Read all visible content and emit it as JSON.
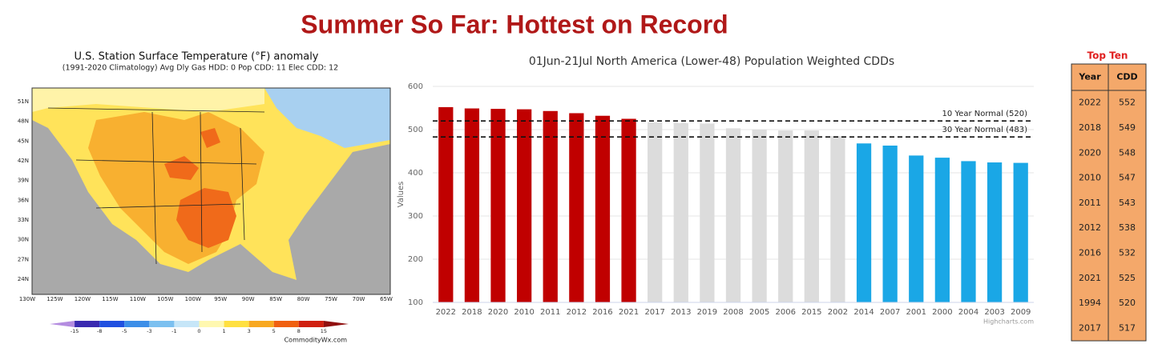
{
  "title": "Summer So Far: Hottest on Record",
  "map": {
    "title": "U.S. Station Surface Temperature (°F) anomaly",
    "subtitle": "(1991-2020 Climatology) Avg Dly Gas HDD: 0 Pop CDD: 11 Elec CDD: 12",
    "lat_labels": [
      "51N",
      "48N",
      "45N",
      "42N",
      "39N",
      "36N",
      "33N",
      "30N",
      "27N",
      "24N"
    ],
    "lon_labels": [
      "130W",
      "125W",
      "120W",
      "115W",
      "110W",
      "105W",
      "100W",
      "95W",
      "90W",
      "85W",
      "80W",
      "75W",
      "70W",
      "65W"
    ],
    "colorbar": {
      "ticks": [
        -15,
        -8,
        -5,
        -3,
        -1,
        0,
        1,
        3,
        5,
        8,
        15
      ],
      "colors": [
        "#b48ce0",
        "#3a2ab0",
        "#2050e0",
        "#3c8ee8",
        "#7cc0f0",
        "#c6e6f8",
        "#fff8b0",
        "#ffe040",
        "#f8a820",
        "#f06010",
        "#d02010",
        "#901010"
      ]
    },
    "credit": "CommodityWx.com"
  },
  "chart_data": {
    "type": "bar",
    "title": "01Jun-21Jul North America (Lower-48) Population Weighted CDDs",
    "y_label": "Values",
    "categories": [
      "2022",
      "2018",
      "2020",
      "2010",
      "2011",
      "2012",
      "2016",
      "2021",
      "2017",
      "2013",
      "2019",
      "2008",
      "2005",
      "2006",
      "2015",
      "2002",
      "2014",
      "2007",
      "2001",
      "2000",
      "2004",
      "2003",
      "2009"
    ],
    "values": [
      552,
      549,
      548,
      547,
      543,
      538,
      532,
      525,
      517,
      515,
      514,
      503,
      500,
      498,
      498,
      485,
      468,
      463,
      440,
      435,
      427,
      424,
      423
    ],
    "colors": [
      "#c00000",
      "#c00000",
      "#c00000",
      "#c00000",
      "#c00000",
      "#c00000",
      "#c00000",
      "#c00000",
      "#dcdcdc",
      "#dcdcdc",
      "#dcdcdc",
      "#dcdcdc",
      "#dcdcdc",
      "#dcdcdc",
      "#dcdcdc",
      "#dcdcdc",
      "#1aa7e6",
      "#1aa7e6",
      "#1aa7e6",
      "#1aa7e6",
      "#1aa7e6",
      "#1aa7e6",
      "#1aa7e6"
    ],
    "ylim": [
      100,
      600
    ],
    "yticks": [
      100,
      200,
      300,
      400,
      500,
      600
    ],
    "grid": true,
    "reference_lines": [
      {
        "value": 520,
        "label": "10 Year Normal (520)"
      },
      {
        "value": 483,
        "label": "30 Year Normal (483)"
      }
    ],
    "credit": "Highcharts.com"
  },
  "table": {
    "title": "Top Ten",
    "columns": [
      "Year",
      "CDD"
    ],
    "rows": [
      [
        2022,
        552
      ],
      [
        2018,
        549
      ],
      [
        2020,
        548
      ],
      [
        2010,
        547
      ],
      [
        2011,
        543
      ],
      [
        2012,
        538
      ],
      [
        2016,
        532
      ],
      [
        2021,
        525
      ],
      [
        1994,
        520
      ],
      [
        2017,
        517
      ]
    ]
  }
}
